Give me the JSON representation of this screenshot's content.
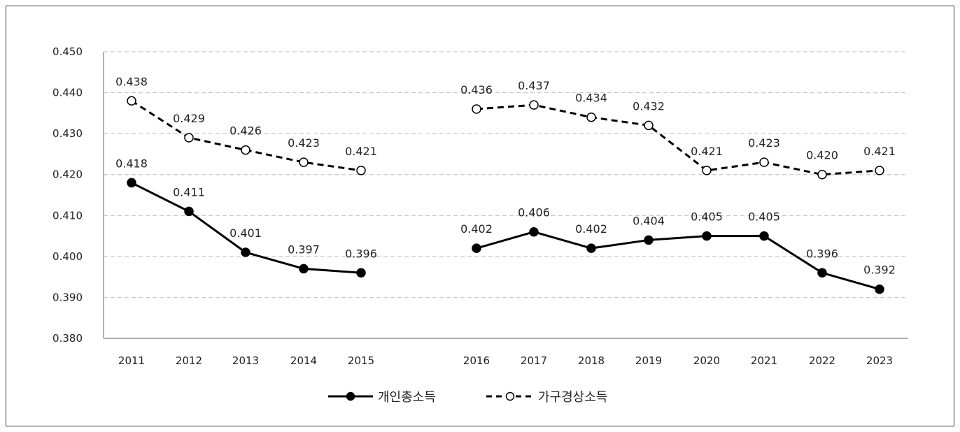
{
  "chart_data": {
    "type": "line",
    "title": "",
    "xlabel": "",
    "ylabel": "",
    "ylim": [
      0.38,
      0.45
    ],
    "yticks": [
      "0.380",
      "0.390",
      "0.400",
      "0.410",
      "0.420",
      "0.430",
      "0.440",
      "0.450"
    ],
    "grid": true,
    "legend_position": "bottom-center",
    "x_segments": [
      [
        "2011",
        "2012",
        "2013",
        "2014",
        "2015"
      ],
      [
        "2016",
        "2017",
        "2018",
        "2019",
        "2020",
        "2021",
        "2022",
        "2023"
      ]
    ],
    "series": [
      {
        "name": "개인총소득",
        "style": "solid-filled-marker",
        "color": "#000000",
        "segments": [
          [
            0.418,
            0.411,
            0.401,
            0.397,
            0.396
          ],
          [
            0.402,
            0.406,
            0.402,
            0.404,
            0.405,
            0.405,
            0.396,
            0.392
          ]
        ],
        "labels": [
          [
            "0.418",
            "0.411",
            "0.401",
            "0.397",
            "0.396"
          ],
          [
            "0.402",
            "0.406",
            "0.402",
            "0.404",
            "0.405",
            "0.405",
            "0.396",
            "0.392"
          ]
        ]
      },
      {
        "name": "가구경상소득",
        "style": "dashed-open-marker",
        "color": "#000000",
        "segments": [
          [
            0.438,
            0.429,
            0.426,
            0.423,
            0.421
          ],
          [
            0.436,
            0.437,
            0.434,
            0.432,
            0.421,
            0.423,
            0.42,
            0.421
          ]
        ],
        "labels": [
          [
            "0.438",
            "0.429",
            "0.426",
            "0.423",
            "0.421"
          ],
          [
            "0.436",
            "0.437",
            "0.434",
            "0.432",
            "0.421",
            "0.423",
            "0.420",
            "0.421"
          ]
        ]
      }
    ]
  }
}
